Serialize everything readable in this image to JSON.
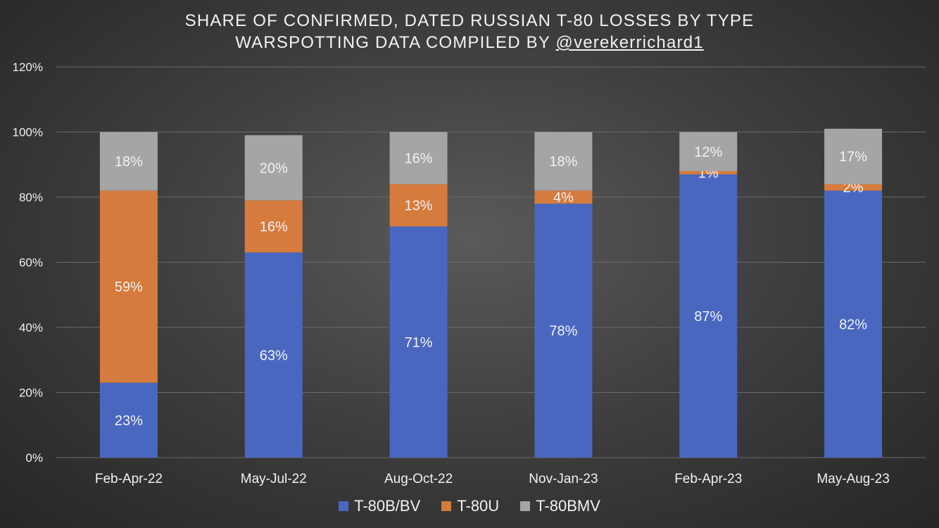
{
  "chart_data": {
    "type": "bar",
    "stacked": true,
    "title_line1": "SHARE OF CONFIRMED, DATED RUSSIAN T-80 LOSSES BY TYPE",
    "title_line2_prefix": "WARSPOTTING DATA COMPILED BY ",
    "title_line2_handle": "@verekerrichard1",
    "categories": [
      "Feb-Apr-22",
      "May-Jul-22",
      "Aug-Oct-22",
      "Nov-Jan-23",
      "Feb-Apr-23",
      "May-Aug-23"
    ],
    "series": [
      {
        "name": "T-80B/BV",
        "color": "#4a67c0",
        "values": [
          23,
          63,
          71,
          78,
          87,
          82
        ],
        "labels": [
          "23%",
          "63%",
          "71%",
          "78%",
          "87%",
          "82%"
        ]
      },
      {
        "name": "T-80U",
        "color": "#d57b3d",
        "values": [
          59,
          16,
          13,
          4,
          1,
          2
        ],
        "labels": [
          "59%",
          "16%",
          "13%",
          "4%",
          "1%",
          "2%"
        ]
      },
      {
        "name": "T-80BMV",
        "color": "#a5a5a5",
        "values": [
          18,
          20,
          16,
          18,
          12,
          17
        ],
        "labels": [
          "18%",
          "20%",
          "16%",
          "18%",
          "12%",
          "17%"
        ]
      }
    ],
    "ylim": [
      0,
      120
    ],
    "yticks": [
      0,
      20,
      40,
      60,
      80,
      100,
      120
    ],
    "ytick_labels": [
      "0%",
      "20%",
      "40%",
      "60%",
      "80%",
      "100%",
      "120%"
    ],
    "grid": true,
    "legend_position": "bottom"
  }
}
